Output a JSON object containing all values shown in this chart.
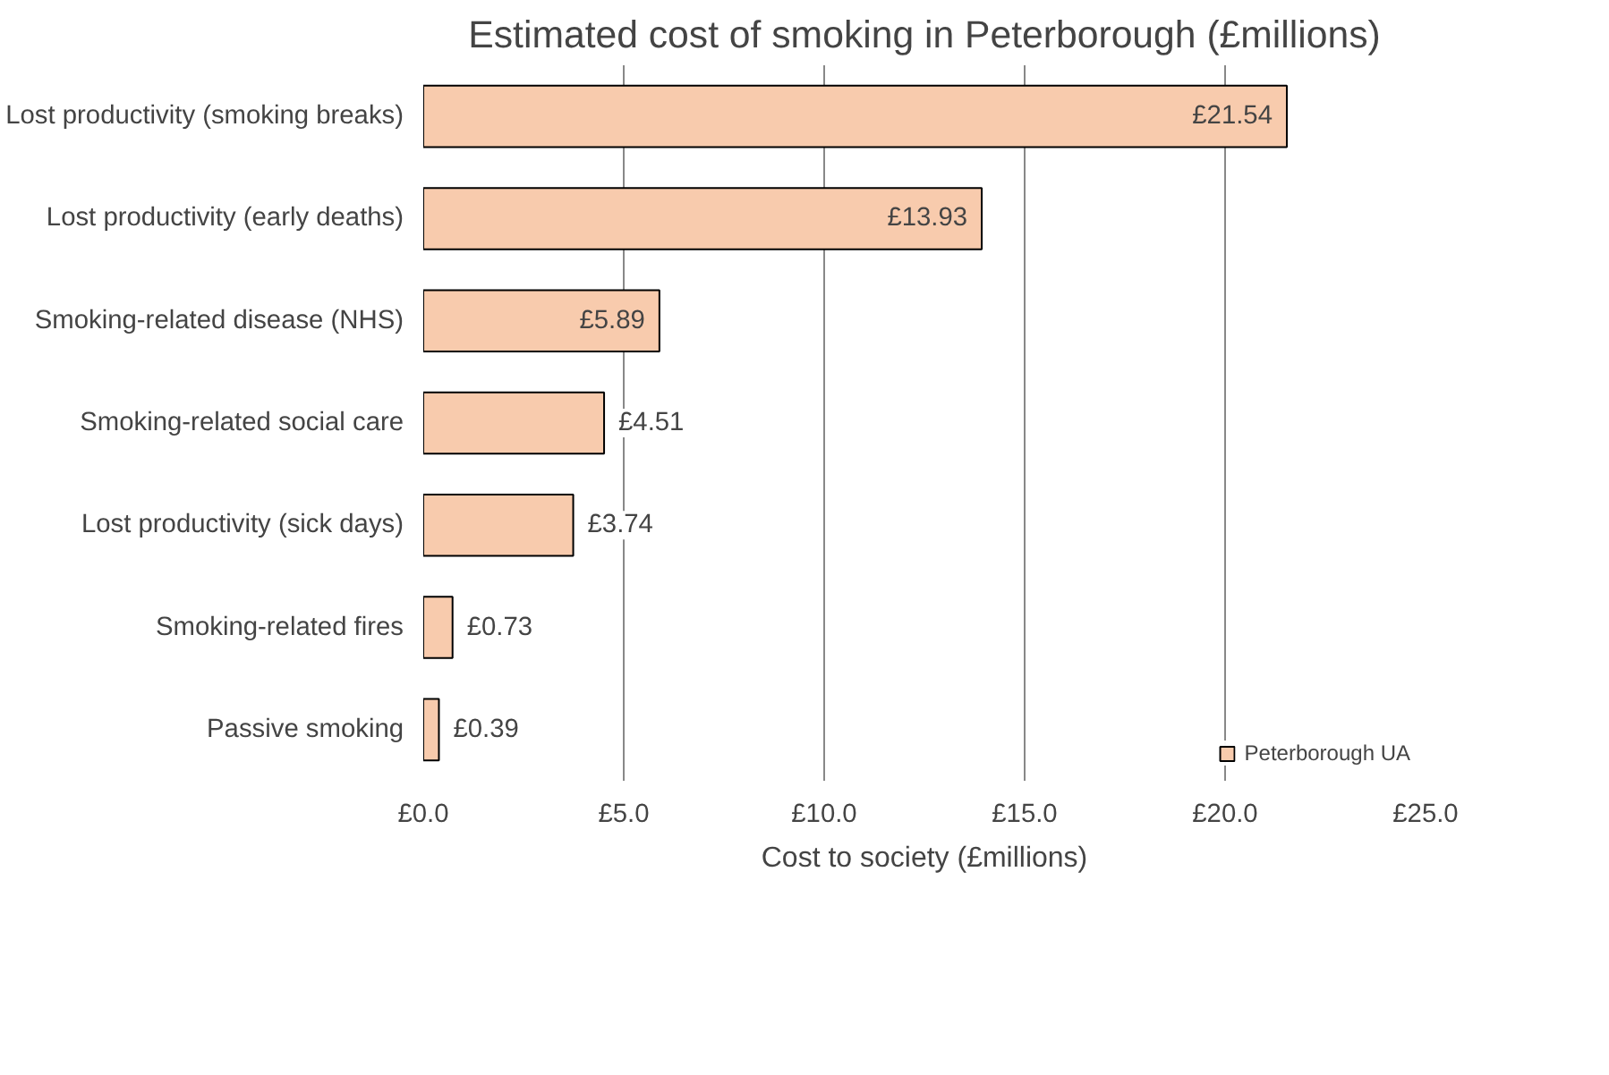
{
  "chart_data": {
    "type": "bar",
    "orientation": "horizontal",
    "title": "Estimated cost of smoking in Peterborough (£millions)",
    "xlabel": "Cost to society (£millions)",
    "categories": [
      "Lost productivity (smoking breaks)",
      "Lost productivity (early deaths)",
      "Smoking-related disease (NHS)",
      "Smoking-related social care",
      "Lost productivity (sick days)",
      "Smoking-related fires",
      "Passive smoking"
    ],
    "series": [
      {
        "name": "Peterborough UA",
        "color": "#f8cbad",
        "values": [
          21.54,
          13.93,
          5.89,
          4.51,
          3.74,
          0.73,
          0.39
        ],
        "value_labels": [
          "£21.54",
          "£13.93",
          "£5.89",
          "£4.51",
          "£3.74",
          "£0.73",
          "£0.39"
        ]
      }
    ],
    "xlim": [
      0,
      25
    ],
    "xticks": [
      {
        "value": 0,
        "label": "£0.0"
      },
      {
        "value": 5,
        "label": "£5.0"
      },
      {
        "value": 10,
        "label": "£10.0"
      },
      {
        "value": 15,
        "label": "£15.0"
      },
      {
        "value": 20,
        "label": "£20.0"
      },
      {
        "value": 25,
        "label": "£25.0"
      }
    ],
    "grid": "x",
    "legend": "bottom right"
  }
}
